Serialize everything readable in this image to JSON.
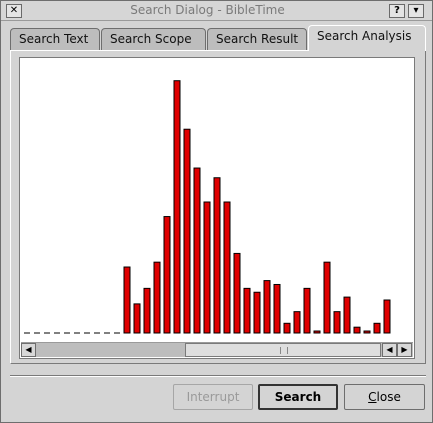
{
  "window": {
    "title": "Search Dialog - BibleTime",
    "close_glyph": "✕",
    "help_glyph": "?",
    "menu_glyph": "▾"
  },
  "tabs": [
    {
      "label": "Search Text",
      "active": false
    },
    {
      "label": "Search Scope",
      "active": false
    },
    {
      "label": "Search Result",
      "active": false
    },
    {
      "label": "Search Analysis",
      "active": true
    }
  ],
  "chart_data": {
    "type": "bar",
    "bar_color": "#e00000",
    "values": [
      0,
      0,
      0,
      0,
      0,
      0,
      0,
      0,
      0,
      0,
      68,
      30,
      46,
      73,
      120,
      260,
      210,
      170,
      135,
      160,
      135,
      82,
      46,
      42,
      54,
      50,
      10,
      22,
      46,
      2,
      73,
      22,
      37,
      6,
      1,
      10,
      34
    ],
    "ylim": [
      0,
      270
    ],
    "grid": false
  },
  "buttons": {
    "interrupt": "Interrupt",
    "search": "Search",
    "close_first": "C",
    "close_rest": "lose"
  },
  "scrollbar": {
    "left_glyph": "◀",
    "right_glyph": "▶"
  }
}
